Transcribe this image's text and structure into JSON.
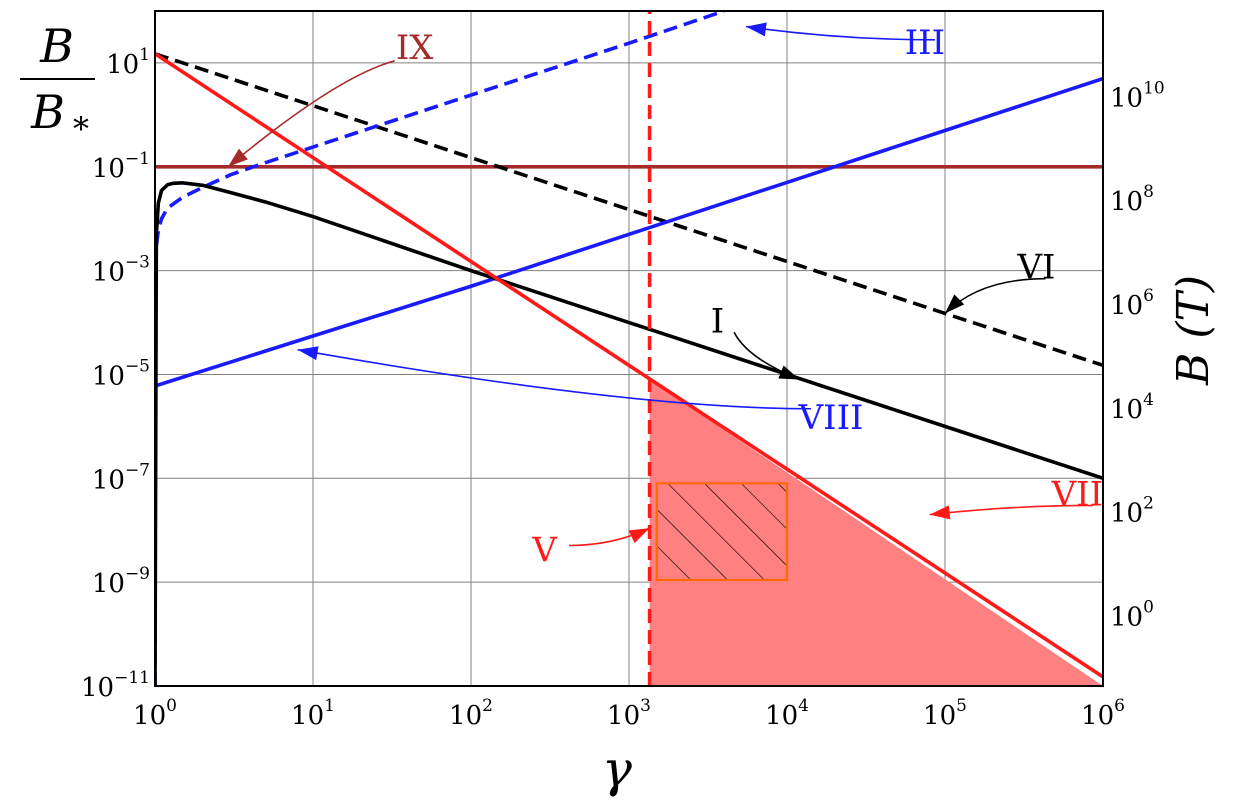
{
  "chart_data": {
    "type": "line",
    "xlabel": "γ",
    "ylabel_left": {
      "numerator": "B",
      "denominator": "B",
      "denominator_sub": "*"
    },
    "ylabel_right": "B (T)",
    "x_scale": "log",
    "y_scale": "log",
    "xlim": [
      1,
      1000000
    ],
    "ylim": [
      1e-11,
      100
    ],
    "grid": true,
    "x_ticks": [
      {
        "base": "10",
        "exp": "0",
        "value": 1
      },
      {
        "base": "10",
        "exp": "1",
        "value": 10
      },
      {
        "base": "10",
        "exp": "2",
        "value": 100
      },
      {
        "base": "10",
        "exp": "3",
        "value": 1000
      },
      {
        "base": "10",
        "exp": "4",
        "value": 10000
      },
      {
        "base": "10",
        "exp": "5",
        "value": 100000
      },
      {
        "base": "10",
        "exp": "6",
        "value": 1000000
      }
    ],
    "y_ticks_left": [
      {
        "base": "10",
        "exp": "1",
        "value": 10
      },
      {
        "base": "10",
        "exp": "−1",
        "value": 0.1
      },
      {
        "base": "10",
        "exp": "−3",
        "value": 0.001
      },
      {
        "base": "10",
        "exp": "−5",
        "value": 1e-05
      },
      {
        "base": "10",
        "exp": "−7",
        "value": 1e-07
      },
      {
        "base": "10",
        "exp": "−9",
        "value": 1e-09
      },
      {
        "base": "10",
        "exp": "−11",
        "value": 1e-11
      }
    ],
    "y_ticks_right": [
      {
        "base": "10",
        "exp": "10",
        "value": 10000000000.0
      },
      {
        "base": "10",
        "exp": "8",
        "value": 100000000.0
      },
      {
        "base": "10",
        "exp": "6",
        "value": 1000000.0
      },
      {
        "base": "10",
        "exp": "4",
        "value": 10000.0
      },
      {
        "base": "10",
        "exp": "2",
        "value": 100
      },
      {
        "base": "10",
        "exp": "0",
        "value": 1
      }
    ],
    "right_axis_scale": "B (T) = 4.4e9 × B/B*",
    "series": [
      {
        "id": "I",
        "color": "#000000",
        "dash": "solid",
        "x": [
          1,
          1.02,
          1.05,
          1.1,
          1.2,
          1.3,
          1.5,
          2,
          3,
          5,
          10,
          100,
          1000,
          10000,
          100000,
          1000000
        ],
        "y": [
          1e-11,
          0.005,
          0.02,
          0.035,
          0.045,
          0.048,
          0.049,
          0.044,
          0.032,
          0.021,
          0.011,
          0.001,
          0.0001,
          1e-05,
          1e-06,
          1e-07
        ]
      },
      {
        "id": "III",
        "color": "#1a1aff",
        "dash": "dashed",
        "x": [
          1,
          1.005,
          1.02,
          1.05,
          1.1,
          1.2,
          1.5,
          2,
          3,
          5,
          10,
          100,
          1000,
          4000
        ],
        "y": [
          1e-11,
          0.0015,
          0.003,
          0.006,
          0.01,
          0.016,
          0.026,
          0.04,
          0.07,
          0.12,
          0.24,
          2.4,
          24,
          100
        ]
      },
      {
        "id": "VI",
        "color": "#000000",
        "dash": "dashed",
        "x": [
          1,
          10,
          100,
          1000,
          10000,
          100000,
          1000000
        ],
        "y": [
          15,
          1.5,
          0.15,
          0.015,
          0.0015,
          0.00015,
          1.5e-05
        ]
      },
      {
        "id": "VII",
        "color": "#ff1a1a",
        "dash": "solid",
        "x": [
          1,
          10,
          100,
          1000,
          10000,
          100000,
          1000000
        ],
        "y": [
          15,
          0.15,
          0.0015,
          1.5e-05,
          1.5e-07,
          1.5e-09,
          1.5e-11
        ]
      },
      {
        "id": "VIII",
        "color": "#1a1aff",
        "dash": "solid",
        "x": [
          1,
          10,
          100,
          1000,
          10000,
          100000,
          1000000
        ],
        "y": [
          6e-06,
          5.5e-05,
          0.0005,
          0.005,
          0.05,
          0.5,
          5
        ]
      },
      {
        "id": "IX",
        "color": "#a52a2a",
        "dash": "solid",
        "x": [
          1,
          1000000
        ],
        "y": [
          0.1,
          0.1
        ]
      },
      {
        "id": "V",
        "color": "#ff1a1a",
        "dash": "dashed",
        "vertical_x": 1350,
        "x": [
          1350,
          1350
        ],
        "y": [
          1e-11,
          100
        ]
      }
    ],
    "shaded_region": {
      "color": "#ff8080",
      "x": [
        1350,
        1350,
        1000000
      ],
      "y": [
        1e-11,
        8e-06,
        1e-11
      ]
    },
    "hatched_box": {
      "color": "#ff6a00",
      "x": [
        1500,
        10000
      ],
      "y": [
        1.1e-09,
        8e-08
      ]
    },
    "annotations": [
      {
        "label": "IX",
        "color": "#a52a2a",
        "text_at": [
          44,
          12
        ],
        "arrow_to": [
          2.9,
          0.1
        ]
      },
      {
        "label": "III",
        "color": "#1a1aff",
        "text_at": [
          100000,
          15
        ],
        "arrow_to": [
          5500,
          50
        ]
      },
      {
        "label": "VI",
        "color": "#000000",
        "text_at": [
          500000,
          0.0007
        ],
        "arrow_to": [
          100000,
          0.00015
        ]
      },
      {
        "label": "I",
        "color": "#000000",
        "text_at": [
          4000,
          6.5e-05
        ],
        "arrow_to": [
          12000,
          8e-06
        ]
      },
      {
        "label": "VIII",
        "color": "#1a1aff",
        "text_at": [
          19000,
          9e-07
        ],
        "arrow_to": [
          8,
          3e-05
        ]
      },
      {
        "label": "V",
        "color": "#ff1a1a",
        "text_at": [
          350,
          2.5e-09
        ],
        "arrow_to": [
          1350,
          1.1e-08
        ]
      },
      {
        "label": "VII",
        "color": "#ff1a1a",
        "text_at": [
          1000000,
          3e-08
        ],
        "arrow_to": [
          80000,
          2e-08
        ]
      }
    ]
  }
}
